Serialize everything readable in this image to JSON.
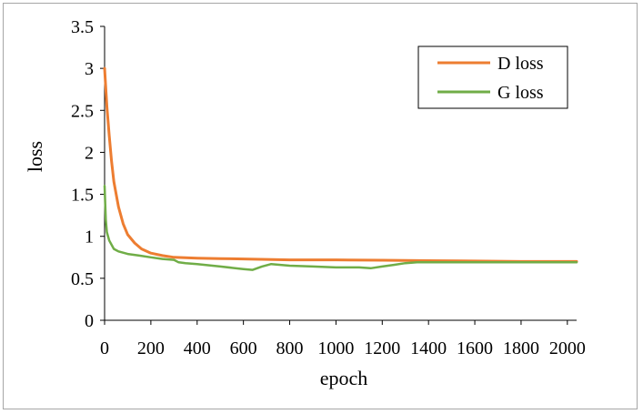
{
  "chart_data": {
    "type": "line",
    "title": "",
    "xlabel": "epoch",
    "ylabel": "loss",
    "xlim": [
      0,
      2040
    ],
    "ylim": [
      0,
      3.5
    ],
    "x_ticks": [
      0,
      200,
      400,
      600,
      800,
      1000,
      1200,
      1400,
      1600,
      1800,
      2000
    ],
    "x_tick_labels": [
      "0",
      "200",
      "400",
      "600",
      "800",
      "1000",
      "1200",
      "1400",
      "1600",
      "1800",
      "2000"
    ],
    "y_ticks": [
      0,
      0.5,
      1,
      1.5,
      2,
      2.5,
      3,
      3.5
    ],
    "y_tick_labels": [
      "0",
      "0.5",
      "1",
      "1.5",
      "2",
      "2.5",
      "3",
      "3.5"
    ],
    "grid": false,
    "legend_position": "top-right",
    "series": [
      {
        "name": "D loss",
        "color": "#ed7d31",
        "x": [
          0,
          10,
          20,
          30,
          40,
          60,
          80,
          100,
          130,
          160,
          200,
          250,
          300,
          400,
          500,
          600,
          700,
          800,
          1000,
          1200,
          1400,
          1600,
          1800,
          2000,
          2040
        ],
        "y": [
          3.0,
          2.55,
          2.2,
          1.9,
          1.65,
          1.35,
          1.15,
          1.02,
          0.92,
          0.85,
          0.8,
          0.77,
          0.75,
          0.74,
          0.735,
          0.73,
          0.725,
          0.72,
          0.72,
          0.715,
          0.71,
          0.705,
          0.7,
          0.7,
          0.7
        ]
      },
      {
        "name": "G loss",
        "color": "#70ad47",
        "x": [
          0,
          5,
          10,
          20,
          40,
          60,
          100,
          150,
          200,
          250,
          300,
          320,
          350,
          400,
          500,
          600,
          640,
          680,
          720,
          760,
          800,
          900,
          1000,
          1100,
          1150,
          1200,
          1250,
          1300,
          1350,
          1400,
          1600,
          1800,
          2000,
          2040
        ],
        "y": [
          1.6,
          1.2,
          1.05,
          0.95,
          0.85,
          0.82,
          0.79,
          0.77,
          0.75,
          0.73,
          0.72,
          0.69,
          0.68,
          0.67,
          0.64,
          0.61,
          0.6,
          0.64,
          0.67,
          0.66,
          0.65,
          0.64,
          0.63,
          0.63,
          0.62,
          0.64,
          0.66,
          0.68,
          0.69,
          0.69,
          0.69,
          0.69,
          0.69,
          0.69
        ]
      }
    ]
  }
}
